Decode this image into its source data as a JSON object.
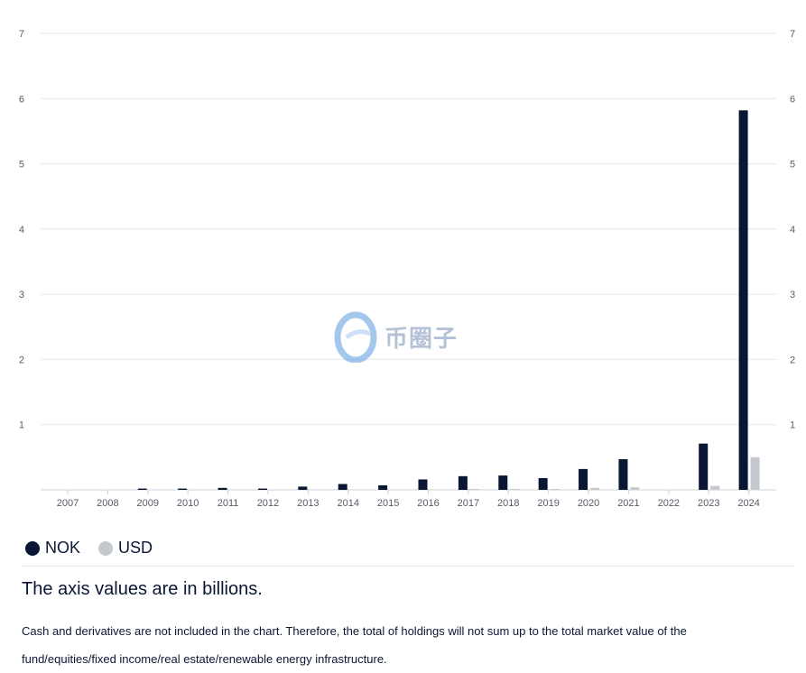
{
  "chart_data": {
    "type": "bar",
    "categories": [
      "2007",
      "2008",
      "2009",
      "2010",
      "2011",
      "2012",
      "2013",
      "2014",
      "2015",
      "2016",
      "2017",
      "2018",
      "2019",
      "2020",
      "2021",
      "2022",
      "2023",
      "2024"
    ],
    "series": [
      {
        "name": "NOK",
        "color": "#0a1734",
        "values": [
          0,
          0,
          0.02,
          0.02,
          0.03,
          0.02,
          0.05,
          0.09,
          0.07,
          0.16,
          0.21,
          0.22,
          0.18,
          0.32,
          0.47,
          0,
          0.71,
          5.82
        ]
      },
      {
        "name": "USD",
        "color": "#c5c8cc",
        "values": [
          0,
          0,
          0,
          0,
          0,
          0,
          0,
          0,
          0,
          0,
          0.01,
          0.01,
          0.01,
          0.03,
          0.04,
          0,
          0.06,
          0.5
        ]
      }
    ],
    "yticks": [
      "1",
      "2",
      "3",
      "4",
      "5",
      "6",
      "7"
    ],
    "ylim": [
      0,
      7
    ],
    "grid": true,
    "legend_position": "bottom-left"
  },
  "watermark": {
    "text": "币圈子",
    "icon": "logo-e-icon"
  },
  "legend": {
    "nok_label": "NOK",
    "usd_label": "USD"
  },
  "notes": {
    "title": "The axis values are in billions.",
    "body": "Cash and derivatives are not included in the chart. Therefore, the total of holdings will not sum up to the total market value of the fund/equities/fixed income/real estate/renewable energy infrastructure."
  }
}
